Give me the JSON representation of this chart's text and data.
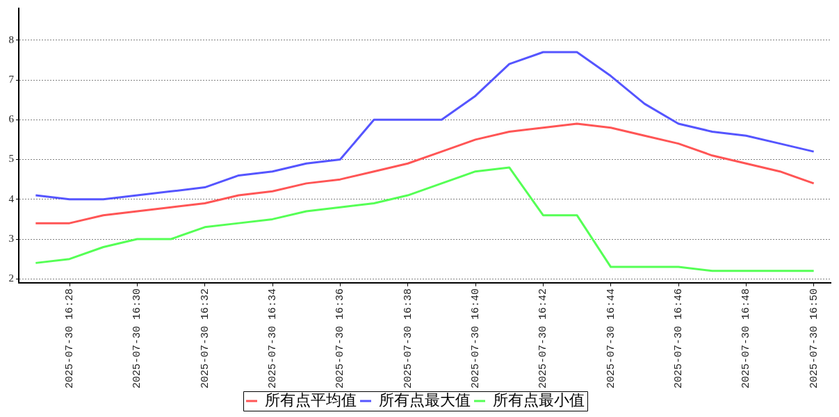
{
  "chart_data": {
    "type": "line",
    "categories": [
      null,
      "2025-07-30 16:28",
      null,
      "2025-07-30 16:30",
      null,
      "2025-07-30 16:32",
      null,
      "2025-07-30 16:34",
      null,
      "2025-07-30 16:36",
      null,
      "2025-07-30 16:38",
      null,
      "2025-07-30 16:40",
      null,
      "2025-07-30 16:42",
      null,
      "2025-07-30 16:44",
      null,
      "2025-07-30 16:46",
      null,
      "2025-07-30 16:48",
      null,
      "2025-07-30 16:50"
    ],
    "series": [
      {
        "name": "所有点平均值",
        "color": "#ff5555",
        "values": [
          3.4,
          3.4,
          3.6,
          3.7,
          3.8,
          3.9,
          4.1,
          4.2,
          4.4,
          4.5,
          4.7,
          4.9,
          5.2,
          5.5,
          5.7,
          5.8,
          5.9,
          5.8,
          5.6,
          5.4,
          5.1,
          4.9,
          4.7,
          4.4
        ]
      },
      {
        "name": "所有点最大值",
        "color": "#5555ff",
        "values": [
          4.1,
          4.0,
          4.0,
          4.1,
          4.2,
          4.3,
          4.6,
          4.7,
          4.9,
          5.0,
          6.0,
          6.0,
          6.0,
          6.6,
          7.4,
          7.7,
          7.7,
          7.1,
          6.4,
          5.9,
          5.7,
          5.6,
          5.4,
          5.2
        ]
      },
      {
        "name": "所有点最小值",
        "color": "#55ff55",
        "values": [
          2.4,
          2.5,
          2.8,
          3.0,
          3.0,
          3.3,
          3.4,
          3.5,
          3.7,
          3.8,
          3.9,
          4.1,
          4.4,
          4.7,
          4.8,
          3.6,
          3.6,
          2.3,
          2.3,
          2.3,
          2.2,
          2.2,
          2.2,
          2.2
        ]
      }
    ],
    "ylim": [
      1.9,
      8.8
    ],
    "yticks": [
      2,
      3,
      4,
      5,
      6,
      7,
      8
    ],
    "grid": "y",
    "legend": "bottom"
  }
}
